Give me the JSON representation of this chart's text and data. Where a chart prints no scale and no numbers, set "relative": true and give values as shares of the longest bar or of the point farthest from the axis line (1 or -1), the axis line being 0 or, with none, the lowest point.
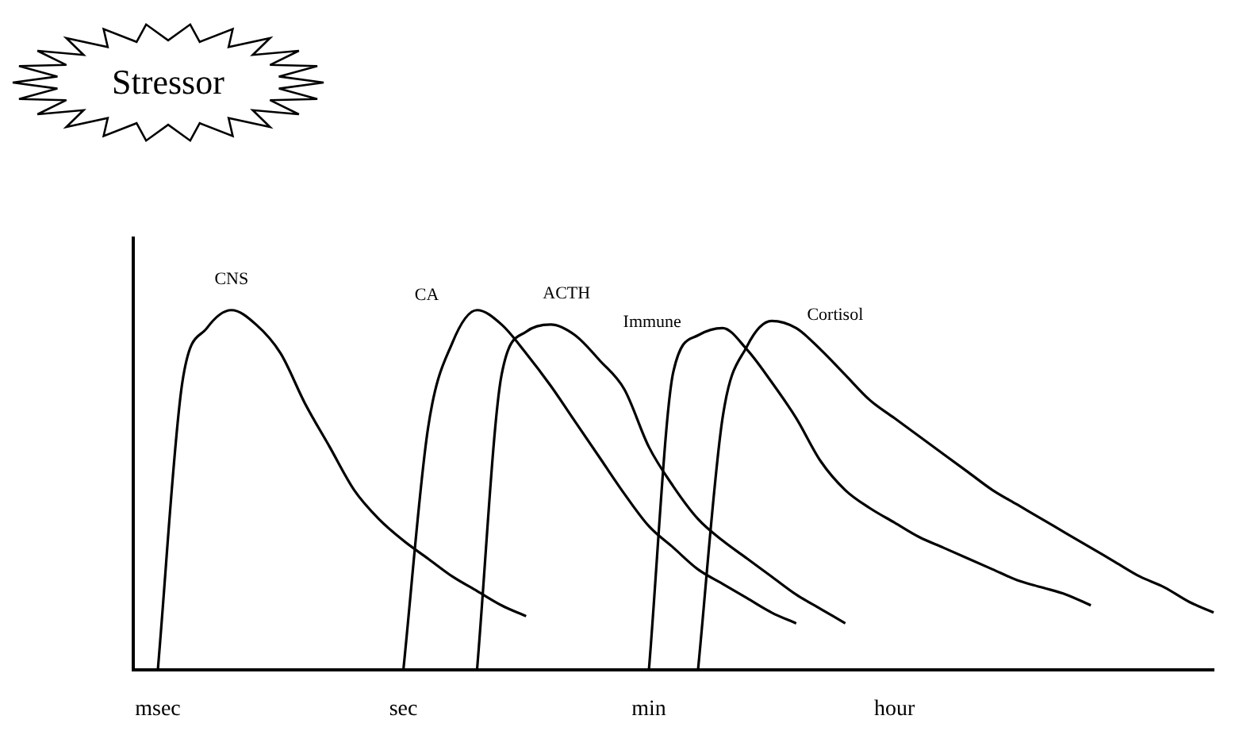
{
  "chart_data": {
    "type": "line",
    "relative": true,
    "marker": "none",
    "tick_labels": "x",
    "annotations": [
      "Stressor"
    ],
    "categories": [
      null,
      "msec",
      null,
      null,
      null,
      null,
      null,
      null,
      null,
      null,
      null,
      "sec",
      null,
      null,
      null,
      null,
      null,
      null,
      null,
      null,
      null,
      "min",
      null,
      null,
      null,
      null,
      null,
      null,
      null,
      null,
      null,
      "hour",
      null,
      null,
      null,
      null,
      null,
      null,
      null,
      null,
      null,
      null,
      null,
      null,
      null
    ],
    "series": [
      {
        "name": "CNS",
        "color": "#000000",
        "values": [
          null,
          0,
          0.8,
          0.95,
          1,
          0.96,
          0.88,
          0.74,
          0.62,
          0.5,
          0.42,
          0.36,
          0.31,
          0.26,
          0.22,
          0.18,
          0.15,
          null,
          null,
          null,
          null,
          null,
          null,
          null,
          null,
          null,
          null,
          null,
          null,
          null,
          null,
          null,
          null,
          null,
          null,
          null,
          null,
          null,
          null,
          null,
          null,
          null,
          null,
          null,
          null
        ]
      },
      {
        "name": "CA",
        "color": "#000000",
        "values": [
          null,
          null,
          null,
          null,
          null,
          null,
          null,
          null,
          null,
          null,
          null,
          0,
          0.67,
          0.91,
          1,
          0.96,
          0.88,
          0.79,
          0.69,
          0.59,
          0.49,
          0.4,
          0.34,
          0.28,
          0.24,
          0.2,
          0.16,
          0.13,
          null,
          null,
          null,
          null,
          null,
          null,
          null,
          null,
          null,
          null,
          null,
          null,
          null,
          null,
          null,
          null,
          null
        ]
      },
      {
        "name": "ACTH",
        "color": "#000000",
        "values": [
          null,
          null,
          null,
          null,
          null,
          null,
          null,
          null,
          null,
          null,
          null,
          null,
          null,
          null,
          0,
          0.82,
          0.94,
          0.96,
          0.93,
          0.86,
          0.78,
          0.62,
          0.51,
          0.42,
          0.36,
          0.31,
          0.26,
          0.21,
          0.17,
          0.13,
          null,
          null,
          null,
          null,
          null,
          null,
          null,
          null,
          null,
          null,
          null,
          null,
          null,
          null,
          null
        ]
      },
      {
        "name": "Immune",
        "color": "#000000",
        "values": [
          null,
          null,
          null,
          null,
          null,
          null,
          null,
          null,
          null,
          null,
          null,
          null,
          null,
          null,
          null,
          null,
          null,
          null,
          null,
          null,
          null,
          0,
          0.83,
          0.93,
          0.95,
          0.89,
          0.8,
          0.7,
          0.58,
          0.5,
          0.45,
          0.41,
          0.37,
          0.34,
          0.31,
          0.28,
          0.25,
          0.23,
          0.21,
          0.18,
          null,
          null,
          null,
          null,
          null
        ]
      },
      {
        "name": "Cortisol",
        "color": "#000000",
        "values": [
          null,
          null,
          null,
          null,
          null,
          null,
          null,
          null,
          null,
          null,
          null,
          null,
          null,
          null,
          null,
          null,
          null,
          null,
          null,
          null,
          null,
          null,
          null,
          0,
          0.7,
          0.9,
          0.97,
          0.95,
          0.89,
          0.82,
          0.75,
          0.7,
          0.65,
          0.6,
          0.55,
          0.5,
          0.46,
          0.42,
          0.38,
          0.34,
          0.3,
          0.26,
          0.23,
          0.19,
          0.16
        ]
      }
    ]
  }
}
